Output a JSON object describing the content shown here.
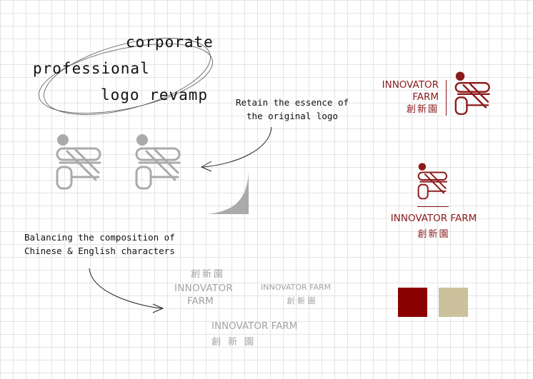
{
  "headline": {
    "line1": "corporate",
    "line2": "professional",
    "line3": "logo revamp"
  },
  "notes": {
    "retain_line1": "Retain the essence of",
    "retain_line2": "the original logo",
    "balance_line1": "Balancing the composition of",
    "balance_line2": "Chinese & English characters"
  },
  "brand": {
    "name_line1": "INNOVATOR",
    "name_line2": "FARM",
    "name_full": "INNOVATOR FARM",
    "chinese": "創新園"
  },
  "studies": {
    "a_chinese": "創新園",
    "a_line1": "INNOVATOR",
    "a_line2": "FARM",
    "b_english": "INNOVATOR FARM",
    "b_chinese": "創 新 園",
    "c_english": "INNOVATOR FARM",
    "c_chinese": "創 新 園"
  },
  "colors": {
    "primary": "#8b0000",
    "secondary": "#cbc29d",
    "grey_mark": "#aaaaaa"
  }
}
